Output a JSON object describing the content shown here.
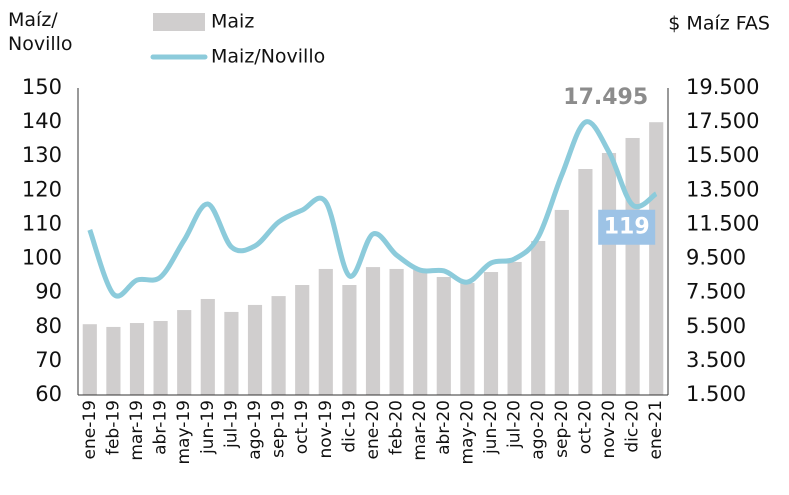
{
  "chart_data": {
    "type": "bar-line",
    "y_label": "Maíz/\nNovillo",
    "y2_label": "$ Maíz FAS",
    "categories": [
      "ene-19",
      "feb-19",
      "mar-19",
      "abr-19",
      "may-19",
      "jun-19",
      "jul-19",
      "ago-19",
      "sep-19",
      "oct-19",
      "nov-19",
      "dic-19",
      "ene-20",
      "feb-20",
      "mar-20",
      "abr-20",
      "may-20",
      "jun-20",
      "jul-20",
      "ago-20",
      "sep-20",
      "oct-20",
      "nov-20",
      "dic-20",
      "ene-21"
    ],
    "series": [
      {
        "name": "Maiz",
        "type": "bar",
        "axis": "y2",
        "color": "#d0cece",
        "values": [
          5650,
          5490,
          5720,
          5840,
          6480,
          7130,
          6370,
          6780,
          7300,
          7950,
          8890,
          7950,
          9000,
          8890,
          8830,
          8420,
          8070,
          8710,
          9300,
          10530,
          12350,
          14750,
          15690,
          16570,
          17495
        ],
        "value_labels": [
          null,
          null,
          null,
          null,
          null,
          null,
          null,
          null,
          null,
          null,
          null,
          null,
          null,
          null,
          null,
          null,
          null,
          null,
          null,
          null,
          null,
          null,
          null,
          null,
          "17.495"
        ]
      },
      {
        "name": "Maiz/Novillo",
        "type": "line",
        "axis": "y",
        "color": "#8ccbdb",
        "values": [
          108.4,
          89.6,
          93.7,
          94.6,
          105.4,
          116,
          103.4,
          103.7,
          110.7,
          114.2,
          116.6,
          94.9,
          107.2,
          101,
          96.6,
          96.4,
          93.1,
          98.7,
          99.9,
          106.3,
          124.5,
          140,
          131.2,
          115.7,
          119
        ]
      }
    ],
    "ylim": [
      60,
      150
    ],
    "yticks": [
      60,
      70,
      80,
      90,
      100,
      110,
      120,
      130,
      140,
      150
    ],
    "y2lim": [
      1500,
      19500
    ],
    "y2ticks": [
      {
        "value": 1500,
        "label": "1.500"
      },
      {
        "value": 3500,
        "label": "3.500"
      },
      {
        "value": 5500,
        "label": "5.500"
      },
      {
        "value": 7500,
        "label": "7.500"
      },
      {
        "value": 9500,
        "label": "9.500"
      },
      {
        "value": 11500,
        "label": "11.500"
      },
      {
        "value": 13500,
        "label": "13.500"
      },
      {
        "value": 15500,
        "label": "15.500"
      },
      {
        "value": 17500,
        "label": "17.500"
      },
      {
        "value": 19500,
        "label": "19.500"
      }
    ],
    "grid": false
  }
}
